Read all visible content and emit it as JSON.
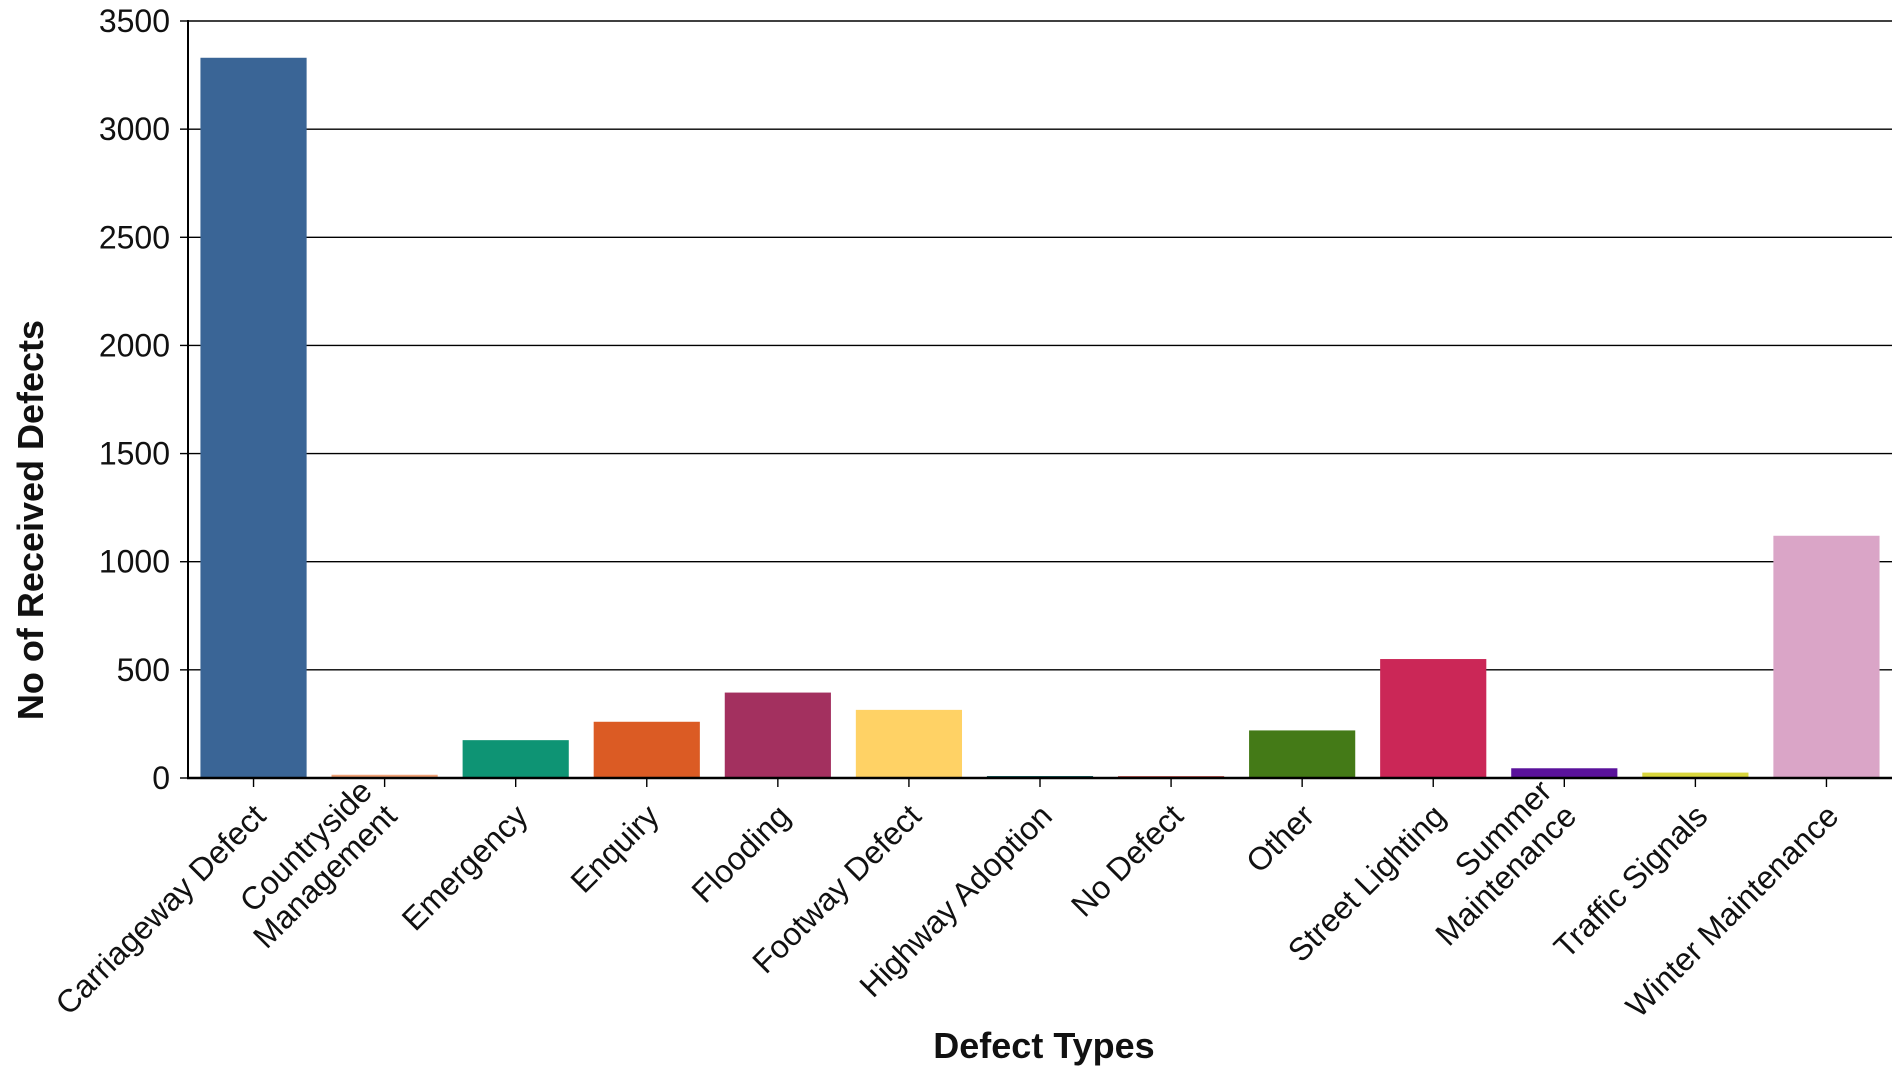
{
  "chart_data": {
    "type": "bar",
    "title": "",
    "xlabel": "Defect Types",
    "ylabel": "No of Received Defects",
    "ylim": [
      0,
      3500
    ],
    "yticks": [
      0,
      500,
      1000,
      1500,
      2000,
      2500,
      3000,
      3500
    ],
    "grid": true,
    "legend": "none",
    "categories": [
      "Carriageway Defect",
      "Countryside Management",
      "Emergency",
      "Enquiry",
      "Flooding",
      "Footway Defect",
      "Highway Adoption",
      "No Defect",
      "Other",
      "Street Lighting",
      "Summer Maintenance",
      "Traffic Signals",
      "Winter Maintenance"
    ],
    "category_label_lines": [
      [
        "Carriageway Defect"
      ],
      [
        "Countryside",
        "Management"
      ],
      [
        "Emergency"
      ],
      [
        "Enquiry"
      ],
      [
        "Flooding"
      ],
      [
        "Footway Defect"
      ],
      [
        "Highway Adoption"
      ],
      [
        "No Defect"
      ],
      [
        "Other"
      ],
      [
        "Street Lighting"
      ],
      [
        "Summer",
        "Maintenance"
      ],
      [
        "Traffic Signals"
      ],
      [
        "Winter Maintenance"
      ]
    ],
    "values": [
      3330,
      15,
      175,
      260,
      395,
      315,
      5,
      5,
      220,
      550,
      45,
      25,
      1120
    ],
    "colors": [
      "#3A6596",
      "#F0A277",
      "#0E9474",
      "#DB5B24",
      "#A3305F",
      "#FFD265",
      "#1A5C5A",
      "#C0605A",
      "#447A17",
      "#CB2757",
      "#5A129B",
      "#D9D63E",
      "#DAA5C7"
    ]
  }
}
